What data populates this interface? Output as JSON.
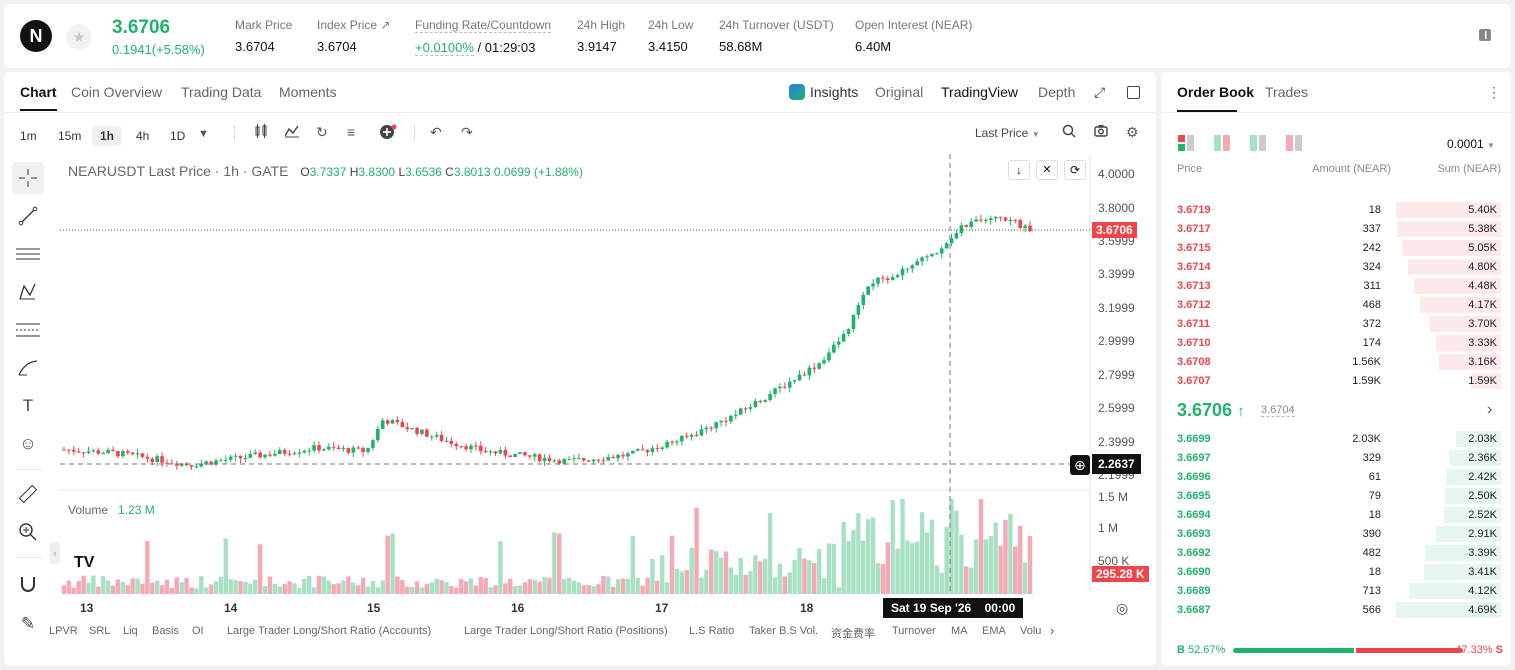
{
  "header": {
    "logo_letter": "N",
    "last_price": "3.6706",
    "change": "0.1941(+5.58%)",
    "stats": [
      {
        "label": "Mark Price",
        "value": "3.6704"
      },
      {
        "label": "Index Price ↗",
        "value": "3.6704"
      },
      {
        "label": "Funding Rate/Countdown",
        "value_rate": "+0.0100%",
        "value_count": "/ 01:29:03"
      },
      {
        "label": "24h High",
        "value": "3.9147"
      },
      {
        "label": "24h Low",
        "value": "3.4150"
      },
      {
        "label": "24h Turnover (USDT)",
        "value": "58.68M"
      },
      {
        "label": "Open Interest (NEAR)",
        "value": "6.40M"
      }
    ]
  },
  "chart_tabs": [
    "Chart",
    "Coin Overview",
    "Trading Data",
    "Moments"
  ],
  "view_tabs": [
    "Insights",
    "Original",
    "TradingView",
    "Depth"
  ],
  "timeframes": [
    "1m",
    "15m",
    "1h",
    "4h",
    "1D"
  ],
  "price_source": "Last Price",
  "legend": {
    "symbol": "NEARUSDT Last Price · 1h · GATE",
    "o_label": "O",
    "o": "3.7337",
    "h_label": "H",
    "h": "3.8300",
    "l_label": "L",
    "l": "3.6536",
    "c_label": "C",
    "c": "3.8013",
    "chg": "0.0699 (+1.88%)"
  },
  "volume_legend": {
    "label": "Volume",
    "value": "1.23 M"
  },
  "price_axis": [
    "4.0000",
    "3.8000",
    "3.5999",
    "3.3999",
    "3.1999",
    "2.9999",
    "2.7999",
    "2.5999",
    "2.3999",
    "2.1999"
  ],
  "volume_axis": [
    "1.5 M",
    "1 M",
    "500 K"
  ],
  "time_axis": [
    "13",
    "14",
    "15",
    "16",
    "17",
    "18"
  ],
  "price_tag": "3.6706",
  "crosshair_price": "2.2637",
  "volume_tag": "295.28 K",
  "crosshair_time": "Sat 19 Sep '26",
  "crosshair_clock": "00:00",
  "indicators": [
    "LPVR",
    "SRL",
    "Liq",
    "Basis",
    "OI",
    "Large Trader Long/Short Ratio (Accounts)",
    "Large Trader Long/Short Ratio (Positions)",
    "L.S Ratio",
    "Taker B.S Vol.",
    "资金费率",
    "Turnover",
    "MA",
    "EMA",
    "Volu"
  ],
  "orderbook": {
    "tabs": [
      "Order Book",
      "Trades"
    ],
    "precision": "0.0001",
    "headers": [
      "Price",
      "Amount (NEAR)",
      "Sum (NEAR)"
    ],
    "asks": [
      {
        "price": "3.6719",
        "amount": "18",
        "sum": "5.40K",
        "depth": 1.0
      },
      {
        "price": "3.6717",
        "amount": "337",
        "sum": "5.38K",
        "depth": 0.99
      },
      {
        "price": "3.6715",
        "amount": "242",
        "sum": "5.05K",
        "depth": 0.94
      },
      {
        "price": "3.6714",
        "amount": "324",
        "sum": "4.80K",
        "depth": 0.89
      },
      {
        "price": "3.6713",
        "amount": "311",
        "sum": "4.48K",
        "depth": 0.83
      },
      {
        "price": "3.6712",
        "amount": "468",
        "sum": "4.17K",
        "depth": 0.77
      },
      {
        "price": "3.6711",
        "amount": "372",
        "sum": "3.70K",
        "depth": 0.69
      },
      {
        "price": "3.6710",
        "amount": "174",
        "sum": "3.33K",
        "depth": 0.62
      },
      {
        "price": "3.6708",
        "amount": "1.56K",
        "sum": "3.16K",
        "depth": 0.59
      },
      {
        "price": "3.6707",
        "amount": "1.59K",
        "sum": "1.59K",
        "depth": 0.29
      }
    ],
    "mid_price": "3.6706",
    "mid_mark": "3.6704",
    "bids": [
      {
        "price": "3.6699",
        "amount": "2.03K",
        "sum": "2.03K",
        "depth": 0.43
      },
      {
        "price": "3.6697",
        "amount": "329",
        "sum": "2.36K",
        "depth": 0.5
      },
      {
        "price": "3.6696",
        "amount": "61",
        "sum": "2.42K",
        "depth": 0.52
      },
      {
        "price": "3.6695",
        "amount": "79",
        "sum": "2.50K",
        "depth": 0.53
      },
      {
        "price": "3.6694",
        "amount": "18",
        "sum": "2.52K",
        "depth": 0.54
      },
      {
        "price": "3.6693",
        "amount": "390",
        "sum": "2.91K",
        "depth": 0.62
      },
      {
        "price": "3.6692",
        "amount": "482",
        "sum": "3.39K",
        "depth": 0.72
      },
      {
        "price": "3.6690",
        "amount": "18",
        "sum": "3.41K",
        "depth": 0.73
      },
      {
        "price": "3.6689",
        "amount": "713",
        "sum": "4.12K",
        "depth": 0.88
      },
      {
        "price": "3.6687",
        "amount": "566",
        "sum": "4.69K",
        "depth": 1.0
      }
    ],
    "buy_label": "B",
    "buy_pct": "52.67%",
    "sell_label": "S",
    "sell_pct": "47.33%",
    "buy_ratio": 0.5267
  },
  "colors": {
    "up": "#20b26c",
    "down": "#ef454a",
    "up_bar": "#a8e0c4",
    "down_bar": "#f5a9b4"
  }
}
